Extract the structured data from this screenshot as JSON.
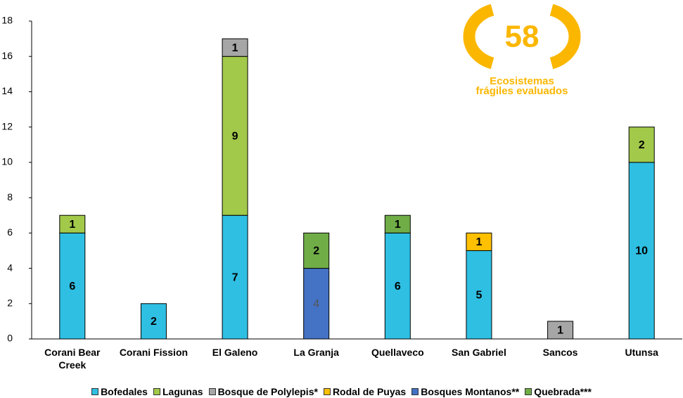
{
  "chart_data": {
    "type": "stacked_bar",
    "categories": [
      "Corani Bear Creek",
      "Corani Fission",
      "El Galeno",
      "La Granja",
      "Quellaveco",
      "San Gabriel",
      "Sancos",
      "Utunsa"
    ],
    "series": [
      {
        "name": "Bofedales",
        "color": "#2fbfe3",
        "values": [
          6,
          2,
          7,
          null,
          6,
          5,
          null,
          10
        ]
      },
      {
        "name": "Lagunas",
        "color": "#a2c94a",
        "values": [
          1,
          null,
          9,
          null,
          null,
          null,
          null,
          2
        ]
      },
      {
        "name": "Bosque de Polylepis*",
        "color": "#a6a6a6",
        "values": [
          null,
          null,
          1,
          null,
          null,
          null,
          1,
          null
        ]
      },
      {
        "name": "Rodal de Puyas",
        "color": "#ffc000",
        "values": [
          null,
          null,
          null,
          null,
          null,
          1,
          null,
          null
        ]
      },
      {
        "name": "Bosques Montanos**",
        "color": "#4472c4",
        "values": [
          null,
          null,
          null,
          4,
          null,
          null,
          null,
          null
        ]
      },
      {
        "name": "Quebrada***",
        "color": "#70ad47",
        "values": [
          null,
          null,
          null,
          2,
          1,
          null,
          null,
          null
        ]
      }
    ],
    "ylim": [
      0,
      18
    ],
    "yticks": [
      0,
      2,
      4,
      6,
      8,
      10,
      12,
      14,
      16,
      18
    ],
    "grid": false,
    "badge": {
      "value": 58,
      "lines": [
        "Ecosistemas",
        "frágiles evaluados"
      ],
      "color": "#fbb700"
    }
  }
}
